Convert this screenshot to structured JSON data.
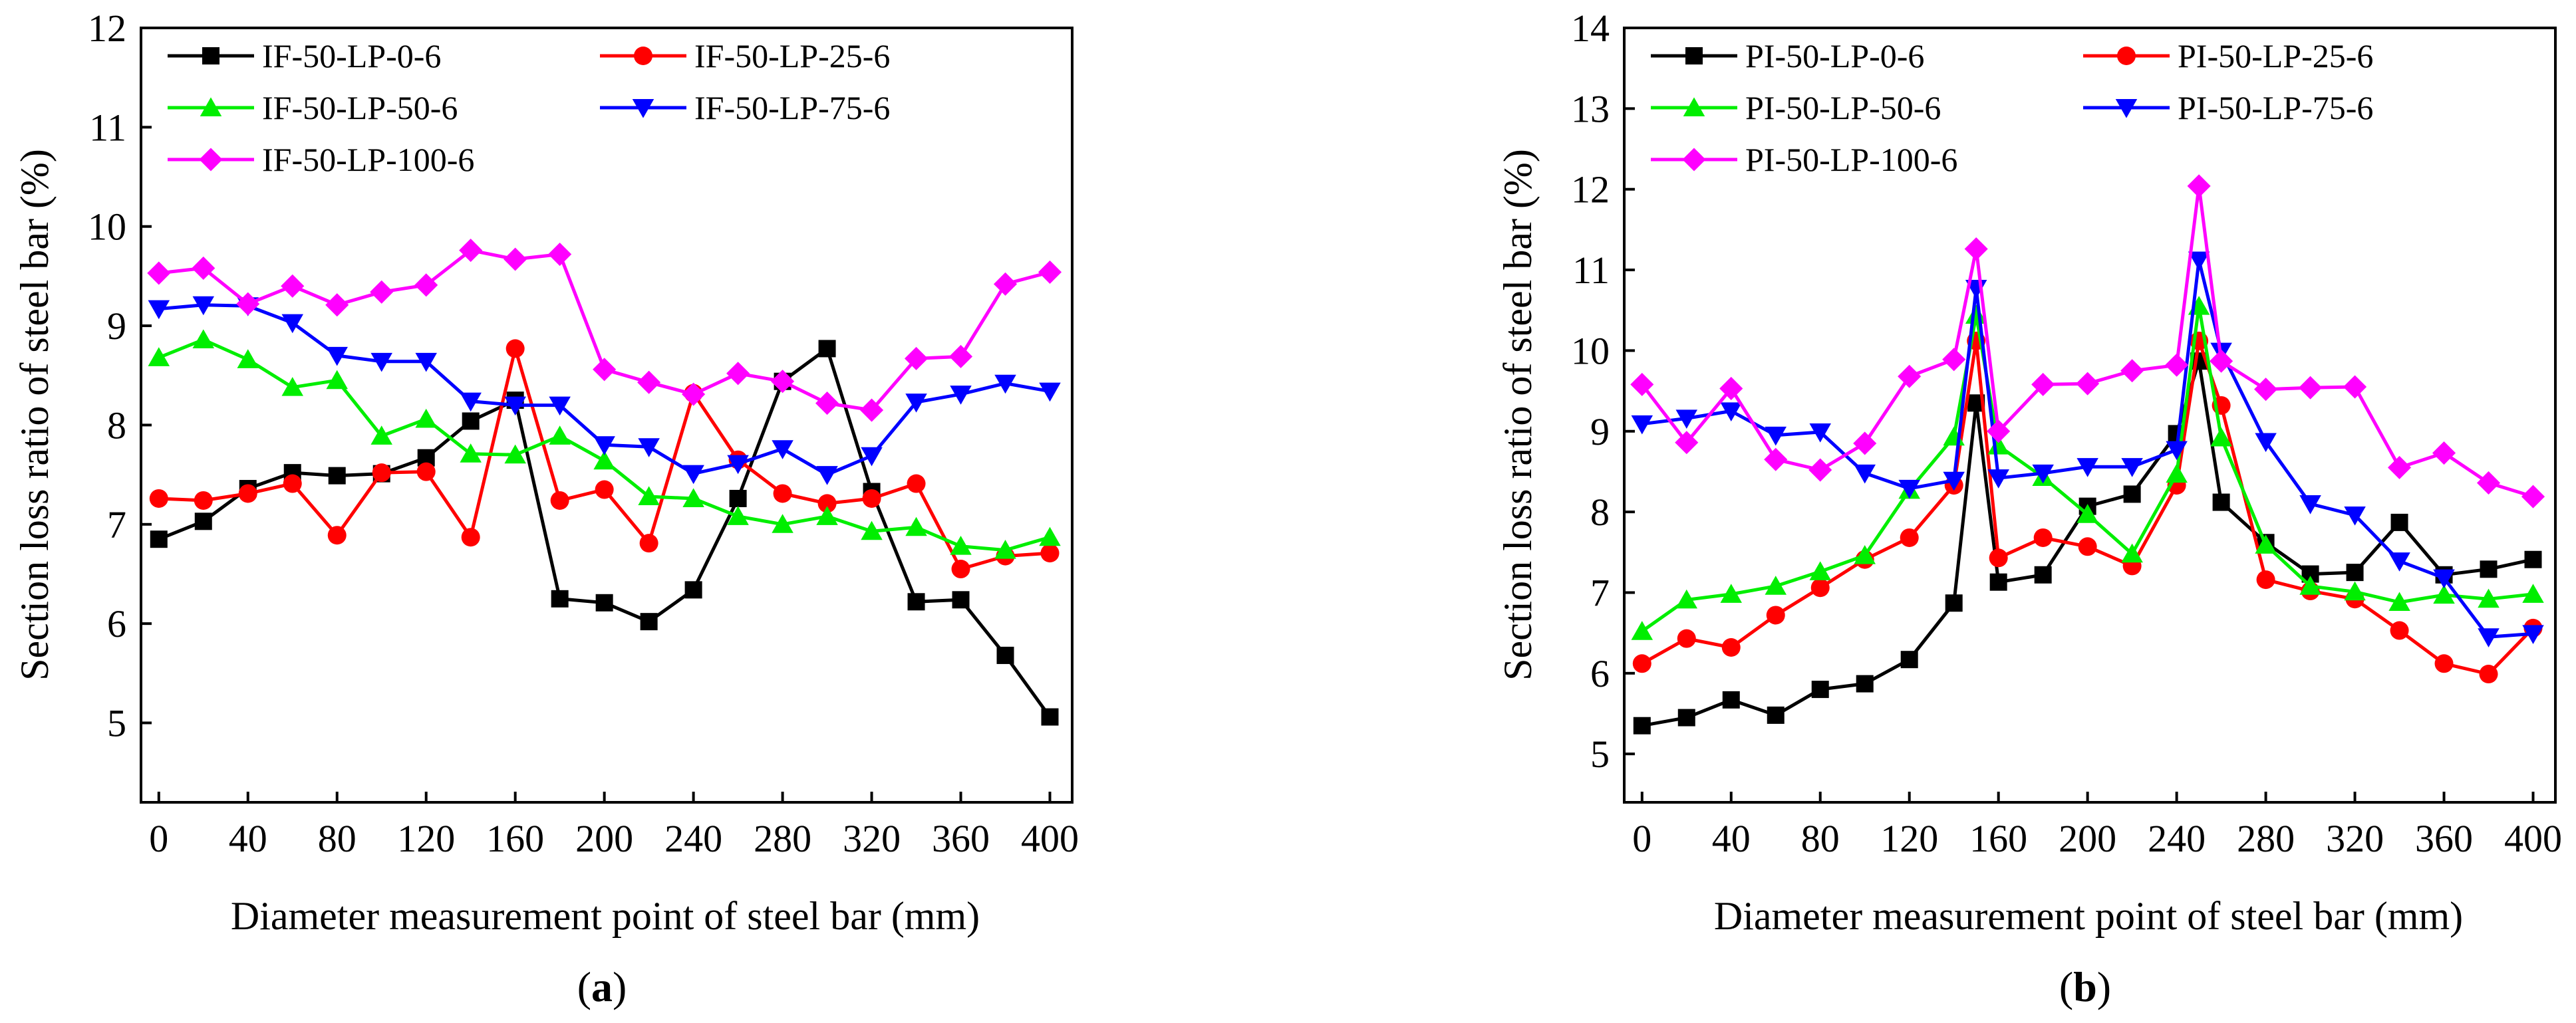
{
  "chart_data": [
    {
      "type": "line",
      "panel_label": "(a)",
      "panel_label_parts": {
        "open": "(",
        "letter": "a",
        "close": ")"
      },
      "xlabel": "Diameter measurement point of steel bar (mm)",
      "ylabel": "Section loss ratio of steel bar (%)",
      "xlim": [
        -8,
        410
      ],
      "ylim": [
        4.2,
        12
      ],
      "xticks": [
        0,
        40,
        80,
        120,
        160,
        200,
        240,
        280,
        320,
        360,
        400
      ],
      "yticks": [
        5,
        6,
        7,
        8,
        9,
        10,
        11,
        12
      ],
      "legend_position": "top-left",
      "series": [
        {
          "name": "IF-50-LP-0-6",
          "color": "#000000",
          "marker": "square",
          "x": [
            0,
            20,
            40,
            60,
            80,
            100,
            120,
            140,
            160,
            180,
            200,
            220,
            240,
            260,
            280,
            300,
            320,
            340,
            360,
            380,
            400
          ],
          "y": [
            6.85,
            7.03,
            7.36,
            7.52,
            7.49,
            7.51,
            7.67,
            8.04,
            8.25,
            6.25,
            6.21,
            6.02,
            6.34,
            7.26,
            8.44,
            8.77,
            7.33,
            6.22,
            6.24,
            5.68,
            5.06
          ]
        },
        {
          "name": "IF-50-LP-25-6",
          "color": "#ff0000",
          "marker": "circle",
          "x": [
            0,
            20,
            40,
            60,
            80,
            100,
            120,
            140,
            160,
            180,
            200,
            220,
            240,
            260,
            280,
            300,
            320,
            340,
            360,
            380,
            400
          ],
          "y": [
            7.26,
            7.24,
            7.31,
            7.41,
            6.89,
            7.52,
            7.53,
            6.87,
            8.77,
            7.24,
            7.35,
            6.81,
            8.32,
            7.65,
            7.31,
            7.21,
            7.26,
            7.41,
            6.55,
            6.68,
            6.71
          ]
        },
        {
          "name": "IF-50-LP-50-6",
          "color": "#00ee00",
          "marker": "triangle-up",
          "x": [
            0,
            20,
            40,
            60,
            80,
            100,
            120,
            140,
            160,
            180,
            200,
            220,
            240,
            260,
            280,
            300,
            320,
            340,
            360,
            380,
            400
          ],
          "y": [
            8.68,
            8.86,
            8.66,
            8.38,
            8.45,
            7.89,
            8.06,
            7.71,
            7.7,
            7.89,
            7.64,
            7.28,
            7.26,
            7.08,
            7.0,
            7.08,
            6.93,
            6.97,
            6.78,
            6.74,
            6.87
          ]
        },
        {
          "name": "IF-50-LP-75-6",
          "color": "#0000ff",
          "marker": "triangle-down",
          "x": [
            0,
            20,
            40,
            60,
            80,
            100,
            120,
            140,
            160,
            180,
            200,
            220,
            240,
            260,
            280,
            300,
            320,
            340,
            360,
            380,
            400
          ],
          "y": [
            9.17,
            9.21,
            9.2,
            9.03,
            8.7,
            8.64,
            8.64,
            8.24,
            8.2,
            8.2,
            7.8,
            7.78,
            7.51,
            7.61,
            7.76,
            7.5,
            7.69,
            8.23,
            8.31,
            8.42,
            8.34
          ]
        },
        {
          "name": "IF-50-LP-100-6",
          "color": "#ff00ff",
          "marker": "diamond",
          "x": [
            0,
            20,
            40,
            60,
            80,
            100,
            120,
            140,
            160,
            180,
            200,
            220,
            240,
            260,
            280,
            300,
            320,
            340,
            360,
            380,
            400
          ],
          "y": [
            9.53,
            9.58,
            9.22,
            9.4,
            9.21,
            9.34,
            9.41,
            9.76,
            9.67,
            9.72,
            8.56,
            8.43,
            8.31,
            8.52,
            8.44,
            8.22,
            8.15,
            8.67,
            8.69,
            9.42,
            9.54
          ]
        }
      ]
    },
    {
      "type": "line",
      "panel_label": "(b)",
      "panel_label_parts": {
        "open": "(",
        "letter": "b",
        "close": ")"
      },
      "xlabel": "Diameter measurement point of steel bar (mm)",
      "ylabel": "Section loss ratio of steel bar (%)",
      "xlim": [
        -8,
        410
      ],
      "ylim": [
        4.4,
        14
      ],
      "xticks": [
        0,
        40,
        80,
        120,
        160,
        200,
        240,
        280,
        320,
        360,
        400
      ],
      "yticks": [
        5,
        6,
        7,
        8,
        9,
        10,
        11,
        12,
        13,
        14
      ],
      "legend_position": "top-left",
      "series": [
        {
          "name": "PI-50-LP-0-6",
          "color": "#000000",
          "marker": "square",
          "x": [
            0,
            20,
            40,
            60,
            80,
            100,
            120,
            140,
            150,
            160,
            180,
            200,
            220,
            240,
            250,
            260,
            280,
            300,
            320,
            340,
            360,
            380,
            400
          ],
          "y": [
            5.35,
            5.45,
            5.67,
            5.48,
            5.8,
            5.87,
            6.17,
            6.87,
            9.35,
            7.13,
            7.22,
            8.07,
            8.22,
            8.97,
            9.87,
            8.12,
            7.62,
            7.23,
            7.25,
            7.87,
            7.22,
            7.29,
            7.41
          ]
        },
        {
          "name": "PI-50-LP-25-6",
          "color": "#ff0000",
          "marker": "circle",
          "x": [
            0,
            20,
            40,
            60,
            80,
            100,
            120,
            140,
            150,
            160,
            180,
            200,
            220,
            240,
            250,
            260,
            280,
            300,
            320,
            340,
            360,
            380,
            400
          ],
          "y": [
            6.12,
            6.43,
            6.32,
            6.72,
            7.06,
            7.41,
            7.68,
            8.33,
            10.12,
            7.43,
            7.68,
            7.57,
            7.33,
            8.33,
            10.12,
            9.32,
            7.16,
            7.02,
            6.92,
            6.53,
            6.12,
            5.99,
            6.56
          ]
        },
        {
          "name": "PI-50-LP-50-6",
          "color": "#00ee00",
          "marker": "triangle-up",
          "x": [
            0,
            20,
            40,
            60,
            80,
            100,
            120,
            140,
            150,
            160,
            180,
            200,
            220,
            240,
            250,
            260,
            280,
            300,
            320,
            340,
            360,
            380,
            400
          ],
          "y": [
            6.52,
            6.91,
            6.98,
            7.08,
            7.26,
            7.46,
            8.27,
            8.93,
            10.44,
            8.82,
            8.43,
            7.97,
            7.48,
            8.47,
            10.55,
            8.92,
            7.59,
            7.08,
            7.01,
            6.88,
            6.97,
            6.92,
            6.98
          ]
        },
        {
          "name": "PI-50-LP-75-6",
          "color": "#0000ff",
          "marker": "triangle-down",
          "x": [
            0,
            20,
            40,
            60,
            80,
            100,
            120,
            140,
            150,
            160,
            180,
            200,
            220,
            240,
            250,
            260,
            280,
            300,
            320,
            340,
            360,
            380,
            400
          ],
          "y": [
            9.09,
            9.16,
            9.25,
            8.95,
            8.99,
            8.48,
            8.29,
            8.39,
            10.77,
            8.42,
            8.48,
            8.56,
            8.56,
            8.77,
            11.12,
            9.99,
            8.87,
            8.1,
            7.96,
            7.39,
            7.18,
            6.45,
            6.49
          ]
        },
        {
          "name": "PI-50-LP-100-6",
          "color": "#ff00ff",
          "marker": "diamond",
          "x": [
            0,
            20,
            40,
            60,
            80,
            100,
            120,
            140,
            150,
            160,
            180,
            200,
            220,
            240,
            250,
            260,
            280,
            300,
            320,
            340,
            360,
            380,
            400
          ],
          "y": [
            9.58,
            8.86,
            9.53,
            8.65,
            8.52,
            8.85,
            9.68,
            9.89,
            11.26,
            9.0,
            9.58,
            9.59,
            9.75,
            9.82,
            12.04,
            9.87,
            9.52,
            9.54,
            9.55,
            8.55,
            8.73,
            8.36,
            8.19
          ]
        }
      ]
    }
  ]
}
